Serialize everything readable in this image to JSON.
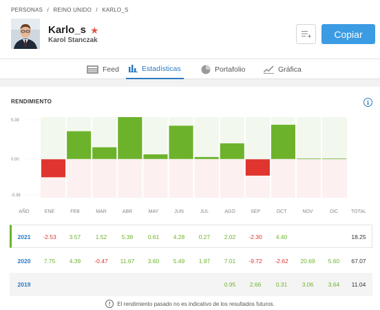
{
  "breadcrumb": [
    "PERSONAS",
    "/",
    "REINO UNIDO",
    "/",
    "KARLO_S"
  ],
  "profile": {
    "username": "Karlo_s",
    "full_name": "Karol Stanczak"
  },
  "actions": {
    "copy_label": "Copiar"
  },
  "tabs": [
    {
      "label": "Feed",
      "icon": "feed-icon",
      "active": false
    },
    {
      "label": "Estadísticas",
      "icon": "stats-icon",
      "active": true
    },
    {
      "label": "Portafolio",
      "icon": "pie-icon",
      "active": false
    },
    {
      "label": "Gráfica",
      "icon": "line-chart-icon",
      "active": false
    }
  ],
  "performance": {
    "title": "RENDIMIENTO",
    "disclaimer": "El rendimiento pasado no es indicativo de los resultados futuros.",
    "columns": [
      "AÑO",
      "ENE",
      "FEB",
      "MAR",
      "ABR",
      "MAY",
      "JUN",
      "JUL",
      "AGO",
      "SEP",
      "OCT",
      "NOV",
      "DIC",
      "TOTAL"
    ],
    "rows": [
      {
        "year": "2021",
        "values": [
          "-2.53",
          "3.57",
          "1.52",
          "5.38",
          "0.61",
          "4.28",
          "0.27",
          "2.02",
          "-2.30",
          "4.40",
          "",
          ""
        ],
        "total": "18.25"
      },
      {
        "year": "2020",
        "values": [
          "7.75",
          "4.39",
          "-0.47",
          "11.67",
          "3.60",
          "5.49",
          "1.97",
          "7.01",
          "-9.72",
          "-2.62",
          "20.69",
          "5.60"
        ],
        "total": "67.07"
      },
      {
        "year": "2019",
        "values": [
          "",
          "",
          "",
          "",
          "",
          "",
          "",
          "0.95",
          "2.66",
          "0.31",
          "3.06",
          "3.64"
        ],
        "total": "11.04"
      }
    ]
  },
  "colors": {
    "positive": "#6cb32b",
    "negative": "#e0342f",
    "accent": "#2879c2",
    "copy_button": "#3b9be3"
  },
  "chart_data": {
    "type": "bar",
    "categories": [
      "ENE",
      "FEB",
      "MAR",
      "ABR",
      "MAY",
      "JUN",
      "JUL",
      "AGO",
      "SEP",
      "OCT",
      "NOV",
      "DIC"
    ],
    "values": [
      -2.53,
      3.57,
      1.52,
      5.38,
      0.61,
      4.28,
      0.27,
      2.02,
      -2.3,
      4.4,
      0,
      0
    ],
    "yticks": [
      "5.38",
      "0.00",
      "-5.38"
    ],
    "ylim": [
      -5.38,
      5.38
    ]
  }
}
